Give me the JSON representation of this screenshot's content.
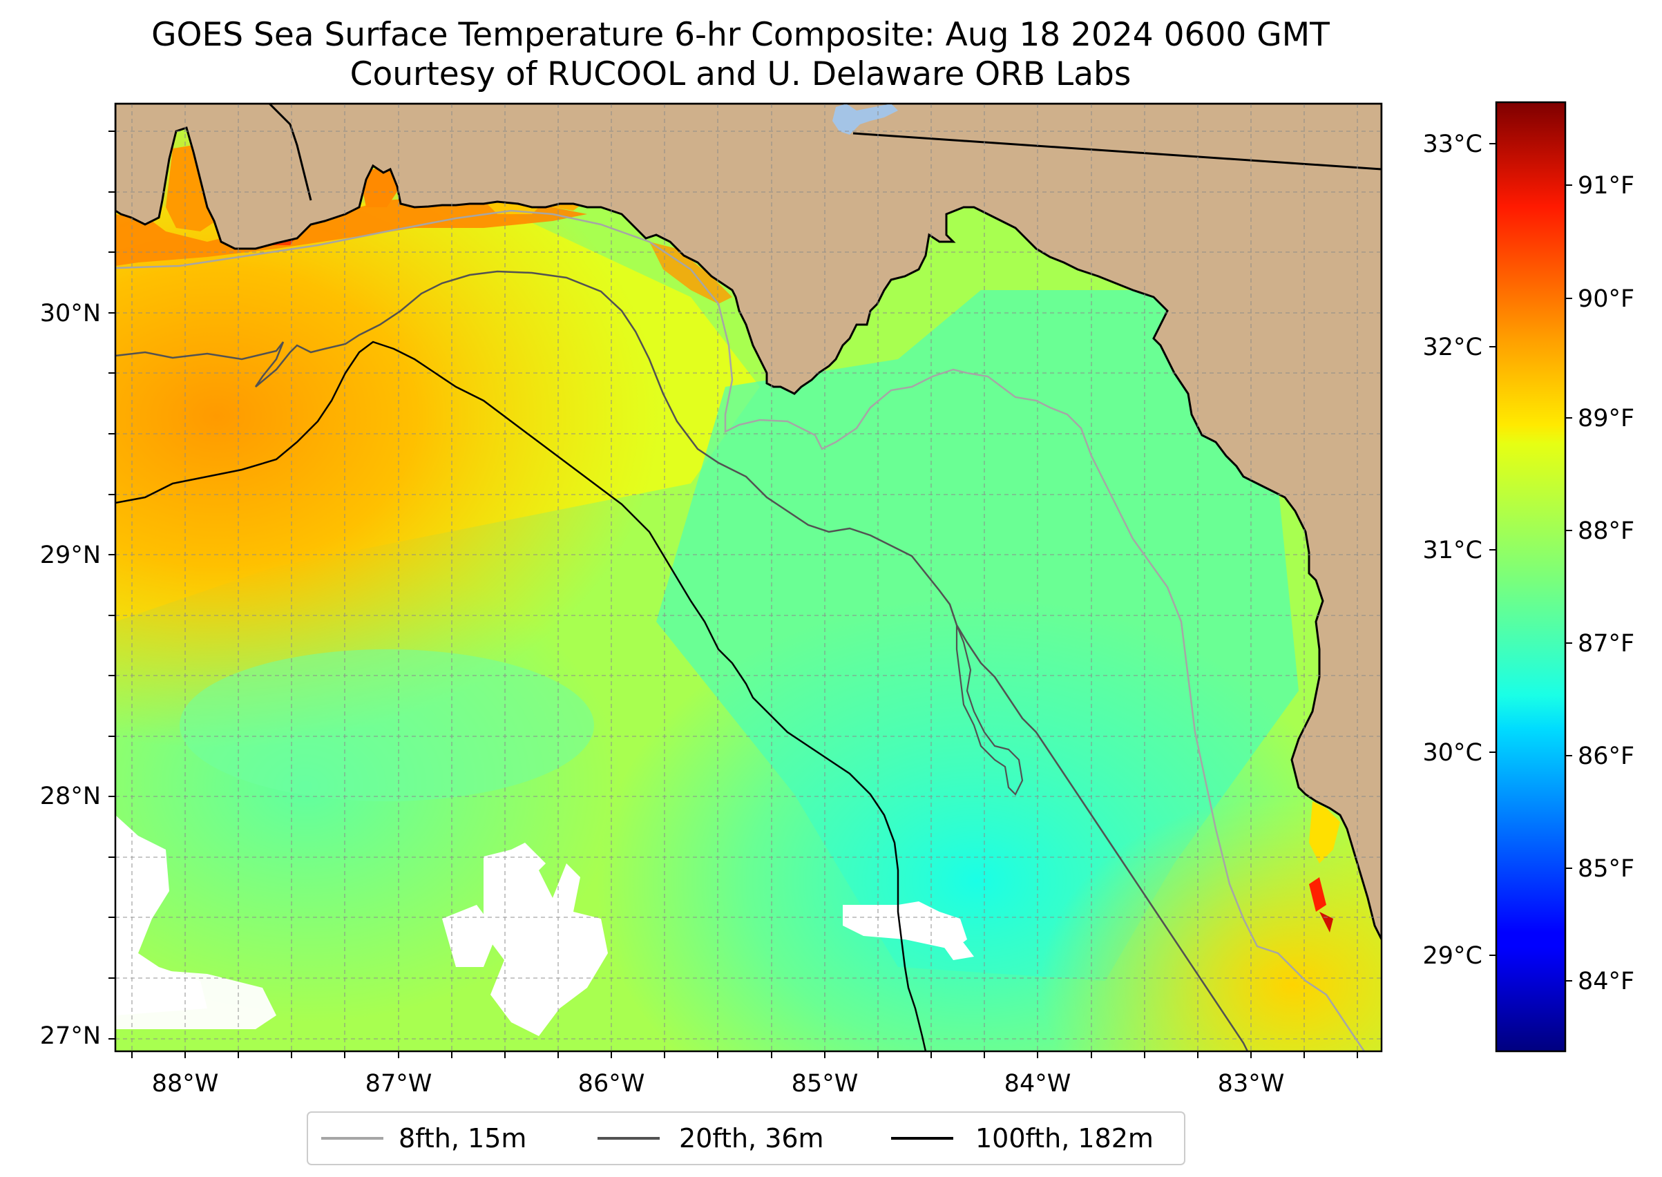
{
  "title": {
    "line1": "GOES Sea Surface Temperature 6-hr Composite: Aug 18 2024 0600 GMT",
    "line2": "Courtesy of RUCOOL and U. Delaware ORB Labs"
  },
  "map": {
    "lon_range": [
      -88.33,
      -82.4
    ],
    "lat_range": [
      26.94,
      30.85
    ],
    "land_color": "#cfb08b",
    "lake_color": "#a4c4e6",
    "no_data_color": "#ffffff",
    "gridlines": true,
    "lon_ticks": [
      "88°W",
      "87°W",
      "86°W",
      "85°W",
      "84°W",
      "83°W"
    ],
    "lat_ticks": [
      "27°N",
      "28°N",
      "29°N",
      "30°N"
    ],
    "contours": [
      {
        "label": "8fth, 15m",
        "color": "#a6a6a6"
      },
      {
        "label": "20fth, 36m",
        "color": "#525252"
      },
      {
        "label": "100fth, 182m",
        "color": "#000000"
      }
    ]
  },
  "colorbar": {
    "colormap": "jet",
    "min_c": 28.5,
    "max_c": 33.19,
    "celsius_ticks": [
      "29°C",
      "30°C",
      "31°C",
      "32°C",
      "33°C"
    ],
    "fahrenheit_ticks": [
      "84°F",
      "85°F",
      "86°F",
      "87°F",
      "88°F",
      "89°F",
      "90°F",
      "91°F"
    ]
  }
}
